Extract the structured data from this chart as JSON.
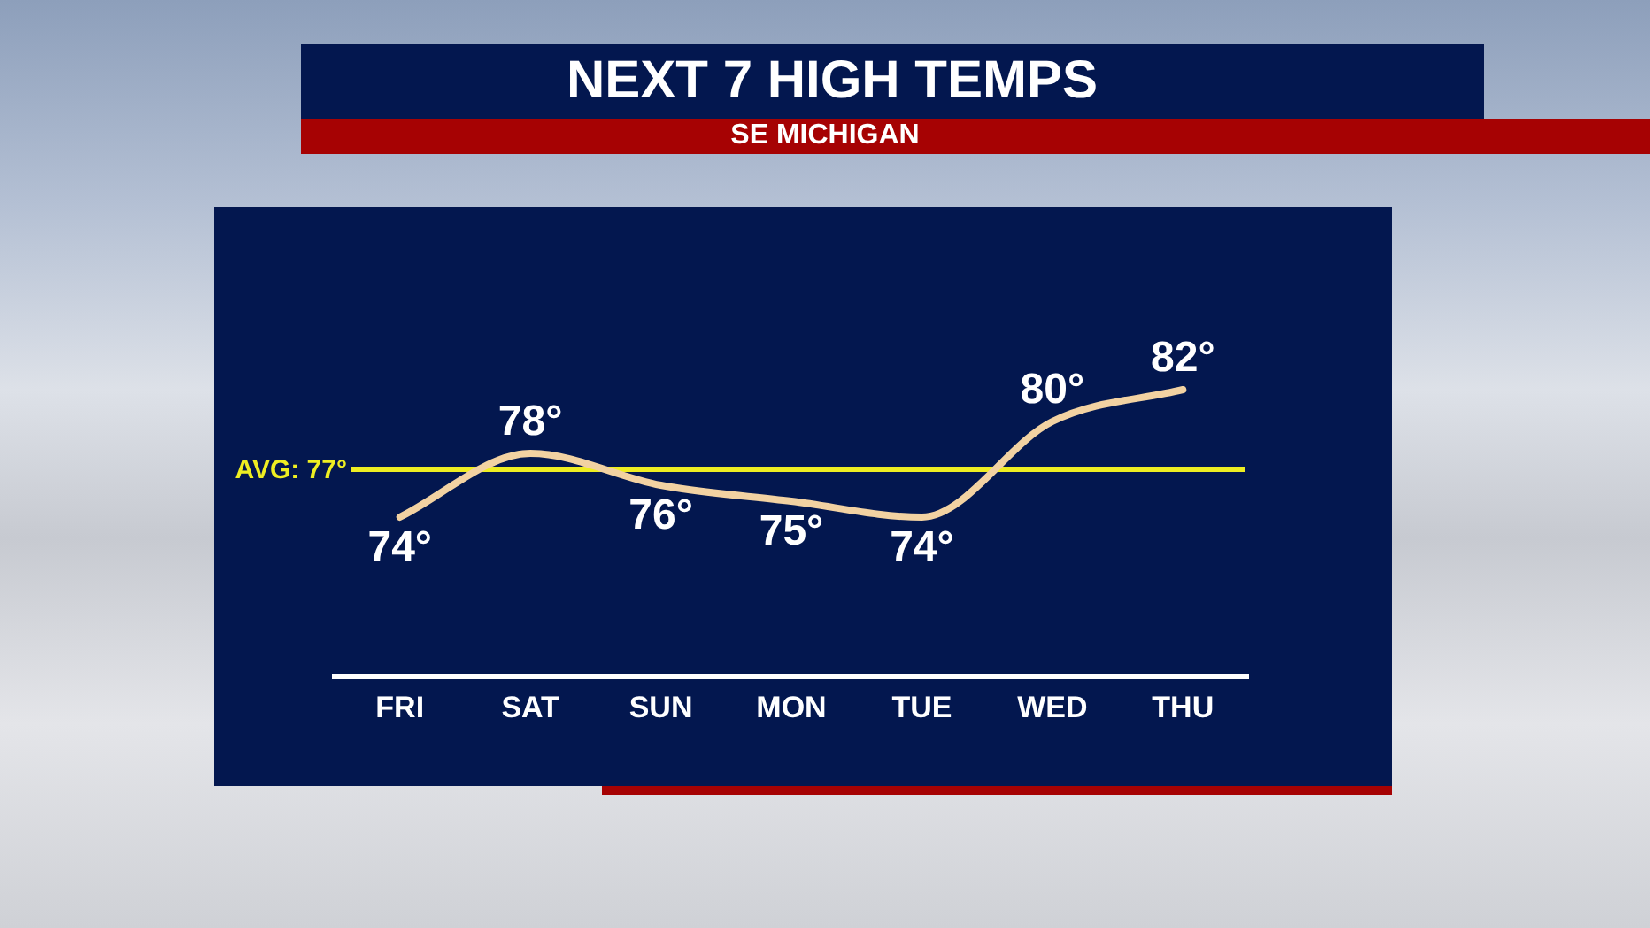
{
  "chart_data": {
    "type": "line",
    "title": "NEXT 7 HIGH TEMPS",
    "subtitle": "SE MICHIGAN",
    "categories": [
      "FRI",
      "SAT",
      "SUN",
      "MON",
      "TUE",
      "WED",
      "THU"
    ],
    "series": [
      {
        "color": "#f2d2a2",
        "values": [
          74,
          78,
          76,
          75,
          74,
          80,
          82
        ],
        "value_labels": [
          "74°",
          "78°",
          "76°",
          "75°",
          "74°",
          "80°",
          "82°"
        ]
      }
    ],
    "ref_lines": [
      {
        "axis": "y",
        "value": 77,
        "label": "AVG: 77°",
        "color": "#eeee22"
      }
    ],
    "tick_labels": "x",
    "marker": "none",
    "line_style": "solid",
    "grid": false,
    "legend": false
  }
}
